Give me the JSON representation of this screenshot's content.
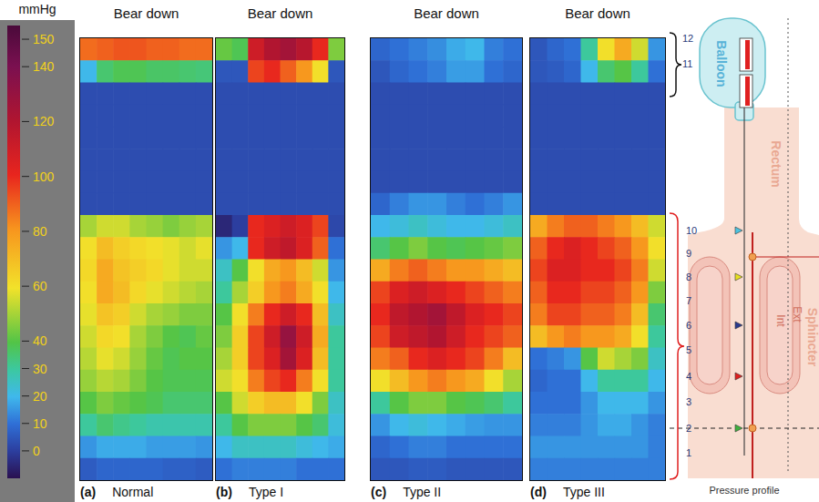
{
  "chart_data": [
    {
      "type": "heatmap",
      "title": "Bear down",
      "panel_label": "(a)",
      "subtitle": "Normal",
      "tick_labels": false,
      "cells": [
        [
          88,
          90,
          92,
          92,
          90,
          90,
          88,
          88
        ],
        [
          20,
          35,
          38,
          38,
          36,
          36,
          35,
          34
        ],
        [
          3,
          3,
          3,
          3,
          3,
          3,
          3,
          3
        ],
        [
          3,
          3,
          3,
          3,
          3,
          3,
          3,
          3
        ],
        [
          3,
          3,
          3,
          3,
          3,
          3,
          3,
          3
        ],
        [
          3,
          3,
          3,
          3,
          3,
          3,
          3,
          3
        ],
        [
          3,
          3,
          3,
          3,
          3,
          3,
          3,
          3
        ],
        [
          3,
          3,
          3,
          3,
          3,
          3,
          3,
          3
        ],
        [
          50,
          55,
          55,
          50,
          48,
          45,
          48,
          50
        ],
        [
          60,
          70,
          65,
          62,
          60,
          58,
          55,
          58
        ],
        [
          62,
          75,
          68,
          65,
          62,
          58,
          55,
          55
        ],
        [
          60,
          75,
          70,
          62,
          58,
          55,
          52,
          50
        ],
        [
          58,
          68,
          65,
          55,
          50,
          48,
          45,
          45
        ],
        [
          55,
          62,
          60,
          50,
          45,
          40,
          38,
          42
        ],
        [
          52,
          58,
          55,
          48,
          42,
          38,
          40,
          40
        ],
        [
          48,
          52,
          50,
          45,
          40,
          38,
          38,
          38
        ],
        [
          40,
          45,
          42,
          40,
          38,
          35,
          35,
          35
        ],
        [
          30,
          35,
          32,
          30,
          28,
          28,
          28,
          28
        ],
        [
          15,
          18,
          18,
          18,
          16,
          16,
          16,
          15
        ],
        [
          6,
          8,
          8,
          8,
          8,
          7,
          7,
          6
        ]
      ]
    },
    {
      "type": "heatmap",
      "title": "Bear down",
      "panel_label": "(b)",
      "subtitle": "Type I",
      "tick_labels": false,
      "cells": [
        [
          42,
          38,
          110,
          120,
          125,
          118,
          100,
          45
        ],
        [
          5,
          5,
          95,
          100,
          90,
          80,
          60,
          5
        ],
        [
          3,
          3,
          3,
          3,
          3,
          3,
          3,
          3
        ],
        [
          3,
          3,
          3,
          3,
          3,
          3,
          3,
          3
        ],
        [
          3,
          3,
          3,
          3,
          3,
          3,
          3,
          3
        ],
        [
          3,
          3,
          3,
          3,
          3,
          3,
          3,
          3
        ],
        [
          3,
          3,
          3,
          3,
          3,
          3,
          3,
          3
        ],
        [
          3,
          3,
          3,
          3,
          3,
          3,
          3,
          3
        ],
        [
          -5,
          0,
          100,
          105,
          110,
          105,
          95,
          2
        ],
        [
          15,
          20,
          100,
          110,
          115,
          105,
          90,
          10
        ],
        [
          25,
          40,
          60,
          75,
          80,
          70,
          55,
          15
        ],
        [
          30,
          50,
          65,
          80,
          85,
          75,
          60,
          20
        ],
        [
          40,
          60,
          85,
          100,
          110,
          100,
          70,
          25
        ],
        [
          45,
          65,
          95,
          110,
          130,
          110,
          75,
          30
        ],
        [
          50,
          65,
          95,
          105,
          125,
          105,
          70,
          30
        ],
        [
          55,
          60,
          85,
          95,
          100,
          85,
          60,
          30
        ],
        [
          40,
          55,
          65,
          70,
          70,
          60,
          45,
          25
        ],
        [
          30,
          40,
          45,
          45,
          45,
          40,
          35,
          22
        ],
        [
          20,
          25,
          25,
          25,
          25,
          22,
          20,
          18
        ],
        [
          10,
          12,
          12,
          12,
          12,
          10,
          10,
          10
        ]
      ]
    },
    {
      "type": "heatmap",
      "title": "Bear down",
      "panel_label": "(c)",
      "subtitle": "Type II",
      "tick_labels": false,
      "cells": [
        [
          8,
          10,
          12,
          14,
          18,
          20,
          12,
          10
        ],
        [
          5,
          8,
          10,
          12,
          16,
          16,
          10,
          8
        ],
        [
          3,
          3,
          3,
          3,
          3,
          3,
          3,
          3
        ],
        [
          3,
          3,
          3,
          3,
          3,
          3,
          3,
          3
        ],
        [
          3,
          3,
          3,
          3,
          3,
          3,
          3,
          3
        ],
        [
          3,
          3,
          3,
          3,
          3,
          3,
          3,
          3
        ],
        [
          3,
          3,
          3,
          3,
          3,
          3,
          3,
          3
        ],
        [
          8,
          12,
          15,
          15,
          12,
          10,
          12,
          15
        ],
        [
          20,
          22,
          25,
          22,
          20,
          20,
          22,
          25
        ],
        [
          35,
          40,
          45,
          40,
          38,
          40,
          42,
          45
        ],
        [
          75,
          85,
          90,
          85,
          80,
          80,
          75,
          70
        ],
        [
          95,
          105,
          110,
          105,
          100,
          95,
          90,
          85
        ],
        [
          100,
          115,
          120,
          125,
          115,
          105,
          100,
          95
        ],
        [
          95,
          110,
          115,
          120,
          110,
          100,
          95,
          90
        ],
        [
          85,
          90,
          100,
          105,
          100,
          95,
          85,
          70
        ],
        [
          60,
          70,
          80,
          85,
          80,
          75,
          60,
          50
        ],
        [
          30,
          40,
          45,
          45,
          40,
          38,
          35,
          30
        ],
        [
          15,
          20,
          22,
          20,
          18,
          16,
          15,
          15
        ],
        [
          8,
          10,
          12,
          12,
          10,
          10,
          10,
          10
        ],
        [
          5,
          5,
          6,
          6,
          5,
          5,
          5,
          5
        ]
      ]
    },
    {
      "type": "heatmap",
      "title": "Bear down",
      "panel_label": "(d)",
      "subtitle": "Type III",
      "tick_labels": false,
      "cells": [
        [
          5,
          8,
          10,
          30,
          60,
          75,
          55,
          15
        ],
        [
          5,
          6,
          8,
          20,
          35,
          40,
          30,
          10
        ],
        [
          3,
          3,
          3,
          3,
          3,
          3,
          3,
          3
        ],
        [
          3,
          3,
          3,
          3,
          3,
          3,
          3,
          3
        ],
        [
          3,
          3,
          3,
          3,
          3,
          3,
          3,
          3
        ],
        [
          3,
          3,
          3,
          3,
          3,
          3,
          3,
          3
        ],
        [
          3,
          3,
          3,
          3,
          3,
          3,
          3,
          3
        ],
        [
          3,
          3,
          3,
          3,
          3,
          3,
          3,
          3
        ],
        [
          75,
          85,
          90,
          90,
          85,
          80,
          70,
          55
        ],
        [
          90,
          100,
          105,
          100,
          95,
          90,
          80,
          60
        ],
        [
          95,
          105,
          105,
          100,
          100,
          95,
          85,
          55
        ],
        [
          90,
          100,
          100,
          95,
          95,
          90,
          80,
          45
        ],
        [
          85,
          95,
          95,
          90,
          90,
          85,
          70,
          35
        ],
        [
          70,
          80,
          85,
          80,
          80,
          75,
          60,
          30
        ],
        [
          10,
          12,
          15,
          40,
          55,
          50,
          45,
          25
        ],
        [
          8,
          10,
          10,
          20,
          30,
          30,
          30,
          20
        ],
        [
          10,
          10,
          10,
          15,
          20,
          20,
          20,
          15
        ],
        [
          12,
          12,
          12,
          15,
          18,
          18,
          15,
          12
        ],
        [
          15,
          15,
          15,
          15,
          15,
          15,
          15,
          12
        ],
        [
          12,
          12,
          12,
          12,
          12,
          12,
          12,
          12
        ]
      ]
    }
  ],
  "colorbar": {
    "label": "mmHg",
    "range": [
      -10,
      155
    ],
    "ticks": [
      0,
      10,
      20,
      30,
      40,
      60,
      80,
      100,
      120,
      140,
      150
    ]
  },
  "diagram": {
    "balloon": "Balloon",
    "rectum": "Rectum",
    "sphincter": "Sphincter",
    "internal": "Int",
    "external": "Ext",
    "pressure_profile": "Pressure profile",
    "sensors": [
      1,
      2,
      3,
      4,
      5,
      6,
      7,
      8,
      9,
      10,
      11,
      12
    ]
  }
}
